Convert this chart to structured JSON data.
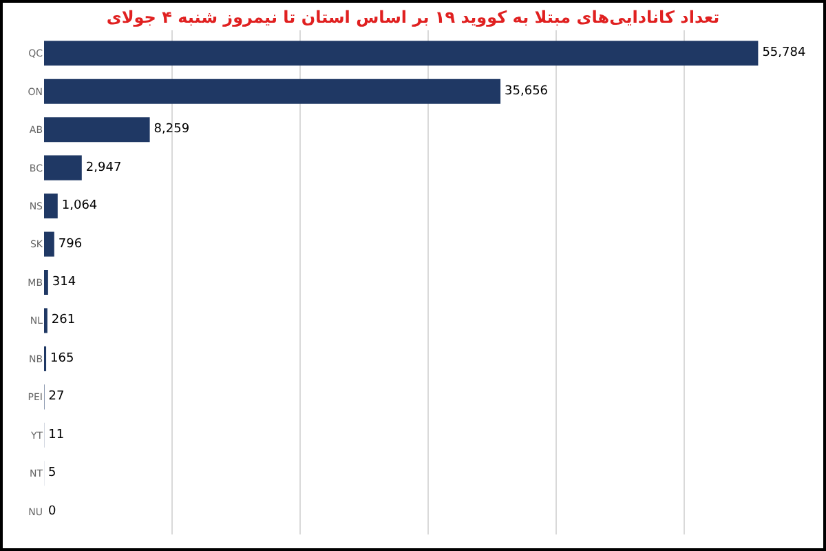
{
  "chart_data": {
    "type": "bar",
    "orientation": "horizontal",
    "title": "تعداد کانادایی‌های مبتلا به کووید ۱۹ بر اساس استان تا نیمروز شنبه ۴ جولای",
    "categories": [
      "QC",
      "ON",
      "AB",
      "BC",
      "NS",
      "SK",
      "MB",
      "NL",
      "NB",
      "PEI",
      "YT",
      "NT",
      "NU"
    ],
    "values": [
      55784,
      35656,
      8259,
      2947,
      1064,
      796,
      314,
      261,
      165,
      27,
      11,
      5,
      0
    ],
    "value_labels": [
      "55,784",
      "35,656",
      "8,259",
      "2,947",
      "1,064",
      "796",
      "314",
      "261",
      "165",
      "27",
      "11",
      "5",
      "0"
    ],
    "color": "#1f3864",
    "grid": "x",
    "tick_labels": "y"
  }
}
